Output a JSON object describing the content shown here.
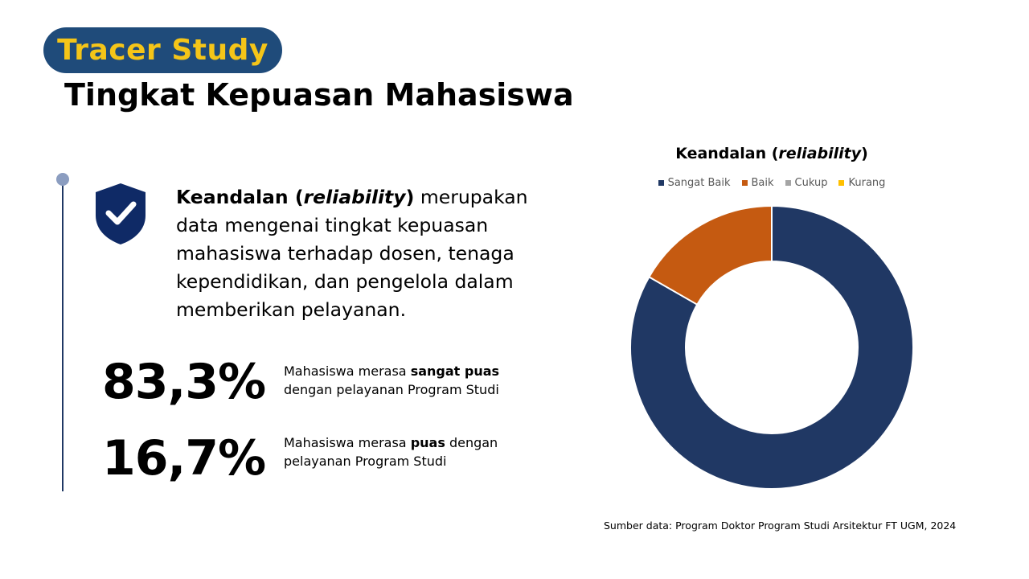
{
  "header": {
    "badge": "Tracer Study",
    "title": "Tingkat Kepuasan Mahasiswa"
  },
  "description": {
    "term": "Keandalan",
    "term_open": " (",
    "term_italic": "reliability",
    "term_close": ")",
    "text": " merupakan data mengenai tingkat kepuasan mahasiswa terhadap dosen, tenaga kependidikan, dan pengelola dalam memberikan pelayanan."
  },
  "stats": [
    {
      "value": "83,3%",
      "text_before": "Mahasiswa merasa ",
      "text_bold": "sangat puas",
      "text_after": " dengan pelayanan Program Studi"
    },
    {
      "value": "16,7%",
      "text_before": "Mahasiswa merasa ",
      "text_bold": "puas",
      "text_after": " dengan pelayanan Program Studi"
    }
  ],
  "icons": {
    "shield": "shield-check-icon"
  },
  "colors": {
    "badge_bg": "#1f4b7a",
    "badge_text": "#f5c518",
    "shield": "#0f2a66"
  },
  "chart_data": {
    "type": "pie",
    "variant": "donut",
    "title": "Keandalan",
    "title_open": " (",
    "title_italic": "reliability",
    "title_close": ")",
    "legend_position": "top",
    "categories": [
      "Sangat Baik",
      "Baik",
      "Cukup",
      "Kurang"
    ],
    "values": [
      83.3,
      16.7,
      0,
      0
    ],
    "colors": [
      "#203864",
      "#c55a11",
      "#a5a5a5",
      "#ffc000"
    ]
  },
  "source": "Sumber data: Program Doktor Program Studi Arsitektur FT UGM, 2024"
}
